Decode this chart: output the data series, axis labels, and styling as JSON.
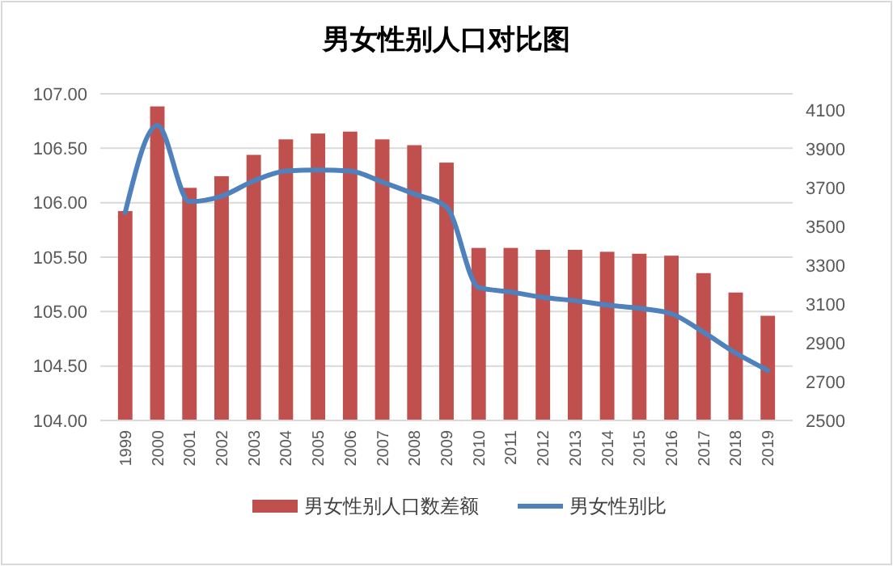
{
  "chart_data": {
    "type": "bar",
    "title": "男女性别人口对比图",
    "categories": [
      "1999",
      "2000",
      "2001",
      "2002",
      "2003",
      "2004",
      "2005",
      "2006",
      "2007",
      "2008",
      "2009",
      "2010",
      "2011",
      "2012",
      "2013",
      "2014",
      "2015",
      "2016",
      "2017",
      "2018",
      "2019"
    ],
    "series": [
      {
        "name": "男女性别人口数差额",
        "axis": "y2",
        "color": "#c0504d",
        "values": [
          3580,
          4120,
          3700,
          3760,
          3870,
          3950,
          3980,
          3990,
          3950,
          3920,
          3830,
          3390,
          3390,
          3380,
          3380,
          3370,
          3360,
          3350,
          3260,
          3160,
          3040
        ]
      },
      {
        "name": "男女性别比",
        "type": "line",
        "axis": "y",
        "color": "#4f81bd",
        "values": [
          105.91,
          106.71,
          106.01,
          106.06,
          106.2,
          106.29,
          106.3,
          106.29,
          106.19,
          106.08,
          105.96,
          105.22,
          105.18,
          105.13,
          105.1,
          105.06,
          105.03,
          104.98,
          104.81,
          104.62,
          104.46
        ]
      }
    ],
    "ylim": [
      104,
      107
    ],
    "yticks": [
      {
        "value": 104,
        "label": "104.00"
      },
      {
        "value": 104.5,
        "label": "104.50"
      },
      {
        "value": 105,
        "label": "105.00"
      },
      {
        "value": 105.5,
        "label": "105.50"
      },
      {
        "value": 106,
        "label": "106.00"
      },
      {
        "value": 106.5,
        "label": "106.50"
      },
      {
        "value": 107,
        "label": "107.00"
      }
    ],
    "y2lim": [
      2500,
      4185
    ],
    "y2ticks": [
      2500,
      2700,
      2900,
      3100,
      3300,
      3500,
      3700,
      3900,
      4100
    ],
    "grid": "y",
    "legend": "bottom"
  }
}
